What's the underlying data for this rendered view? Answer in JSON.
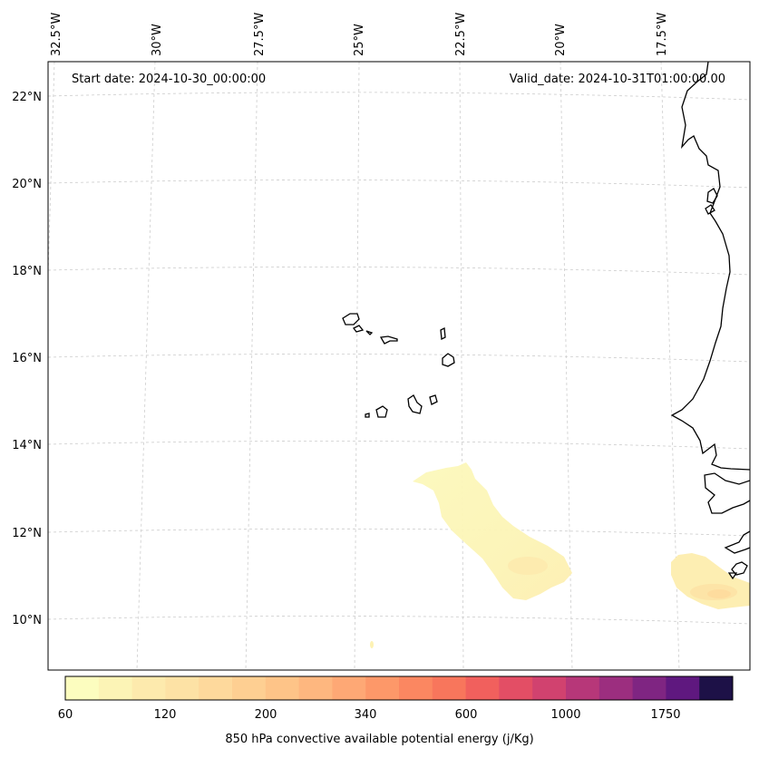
{
  "annotations": {
    "start_date": "Start date: 2024-10-30_00:00:00",
    "valid_date": "Valid_date: 2024-10-31T01:00:00.00"
  },
  "lat_labels": [
    "22°N",
    "20°N",
    "18°N",
    "16°N",
    "14°N",
    "12°N",
    "10°N"
  ],
  "lon_labels": [
    "32.5°W",
    "30°W",
    "27.5°W",
    "25°W",
    "22.5°W",
    "20°W",
    "17.5°W"
  ],
  "colorbar": {
    "label": "850 hPa convective available potential energy (j/Kg)",
    "tick_labels": [
      "60",
      "120",
      "200",
      "340",
      "600",
      "1000",
      "1750"
    ],
    "colors": [
      "#fcfdbf",
      "#fcf4b6",
      "#fdeaad",
      "#fde2a5",
      "#fed99c",
      "#fecf92",
      "#fec488",
      "#feb77f",
      "#fea875",
      "#fd9869",
      "#fb8761",
      "#f8765c",
      "#f1605d",
      "#e34e65",
      "#d1426f",
      "#b73779",
      "#9c2e7f",
      "#7f2582",
      "#5f187f",
      "#1d1147"
    ],
    "palette": "magma_r"
  },
  "chart_data": {
    "type": "heatmap",
    "variable": "850 hPa convective available potential energy",
    "units": "j/Kg",
    "levels": [
      60,
      120,
      200,
      340,
      600,
      1000,
      1750
    ],
    "lon_range": [
      -33,
      -16
    ],
    "lat_range": [
      9,
      23
    ],
    "grid": true,
    "fields": [
      {
        "area": "south of Cape Verde",
        "approx_value_range": [
          60,
          120
        ]
      },
      {
        "area": "off West Africa coast near 11°N 17°W",
        "approx_value_range": [
          60,
          200
        ]
      }
    ]
  }
}
